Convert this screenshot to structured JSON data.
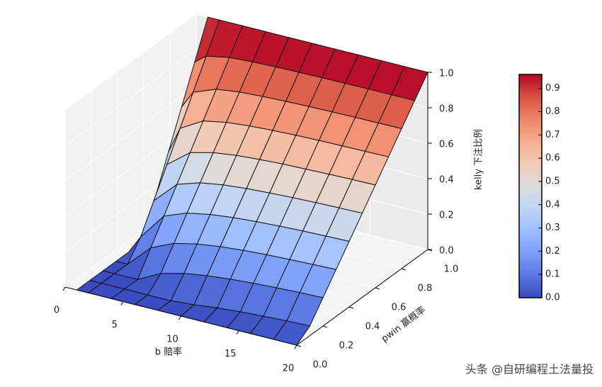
{
  "chart_data": {
    "type": "surface3d",
    "xlabel": "b 赔率",
    "ylabel": "pwin 赢概率",
    "zlabel": "kelly 下注比例",
    "b": [
      1,
      2,
      4,
      6,
      8,
      10,
      12,
      14,
      16,
      18,
      20
    ],
    "p": [
      0,
      0.1,
      0.2,
      0.3,
      0.4,
      0.5,
      0.6,
      0.7,
      0.8,
      0.9,
      1.0
    ],
    "z": [
      [
        0,
        0,
        0,
        0,
        0,
        0,
        0.2,
        0.4,
        0.6,
        0.8,
        1
      ],
      [
        0,
        0,
        0,
        0,
        0.1,
        0.25,
        0.4,
        0.55,
        0.7,
        0.85,
        1
      ],
      [
        0,
        0,
        0,
        0.125,
        0.25,
        0.375,
        0.5,
        0.625,
        0.75,
        0.875,
        1
      ],
      [
        0,
        0,
        0.067,
        0.183,
        0.3,
        0.417,
        0.533,
        0.65,
        0.767,
        0.883,
        1
      ],
      [
        0,
        0,
        0.1,
        0.2125,
        0.325,
        0.4375,
        0.55,
        0.6625,
        0.775,
        0.8875,
        1
      ],
      [
        0,
        0.01,
        0.12,
        0.23,
        0.34,
        0.45,
        0.56,
        0.67,
        0.78,
        0.89,
        1
      ],
      [
        0,
        0.025,
        0.133,
        0.242,
        0.35,
        0.458,
        0.567,
        0.675,
        0.783,
        0.892,
        1
      ],
      [
        0,
        0.036,
        0.143,
        0.25,
        0.357,
        0.464,
        0.571,
        0.679,
        0.786,
        0.893,
        1
      ],
      [
        0,
        0.044,
        0.15,
        0.256,
        0.363,
        0.469,
        0.575,
        0.681,
        0.788,
        0.894,
        1
      ],
      [
        0,
        0.05,
        0.156,
        0.261,
        0.367,
        0.472,
        0.578,
        0.683,
        0.789,
        0.894,
        1
      ],
      [
        0,
        0.055,
        0.16,
        0.265,
        0.37,
        0.475,
        0.58,
        0.685,
        0.79,
        0.895,
        1
      ]
    ],
    "xlim": [
      0,
      20
    ],
    "xticks": [
      0,
      5,
      10,
      15,
      20
    ],
    "ylim": [
      0,
      1
    ],
    "yticks": [
      {
        "value": 0,
        "label": "0.0"
      },
      0.2,
      0.4,
      0.6,
      0.8,
      {
        "value": 1,
        "label": "1.0"
      }
    ],
    "zlim": [
      0,
      1
    ],
    "zticks": [
      {
        "value": 0,
        "label": "0.0"
      },
      0.2,
      0.4,
      0.6,
      0.8,
      {
        "value": 1,
        "label": "1.0"
      }
    ],
    "colormap": [
      "#3b4cc0",
      "#5977e3",
      "#7b9ff9",
      "#9ebeff",
      "#c0d4f5",
      "#dddcdc",
      "#f2cbb7",
      "#f7ac8e",
      "#ee8468",
      "#d65244",
      "#b40426"
    ],
    "clim": [
      0,
      0.96
    ],
    "colorbar_ticks": [
      {
        "value": 0,
        "label": "0.0"
      },
      0.1,
      0.2,
      0.3,
      0.4,
      0.5,
      0.6,
      0.7,
      0.8,
      0.9
    ],
    "grid": true,
    "watermark": "头条 @自研编程土法量投"
  }
}
